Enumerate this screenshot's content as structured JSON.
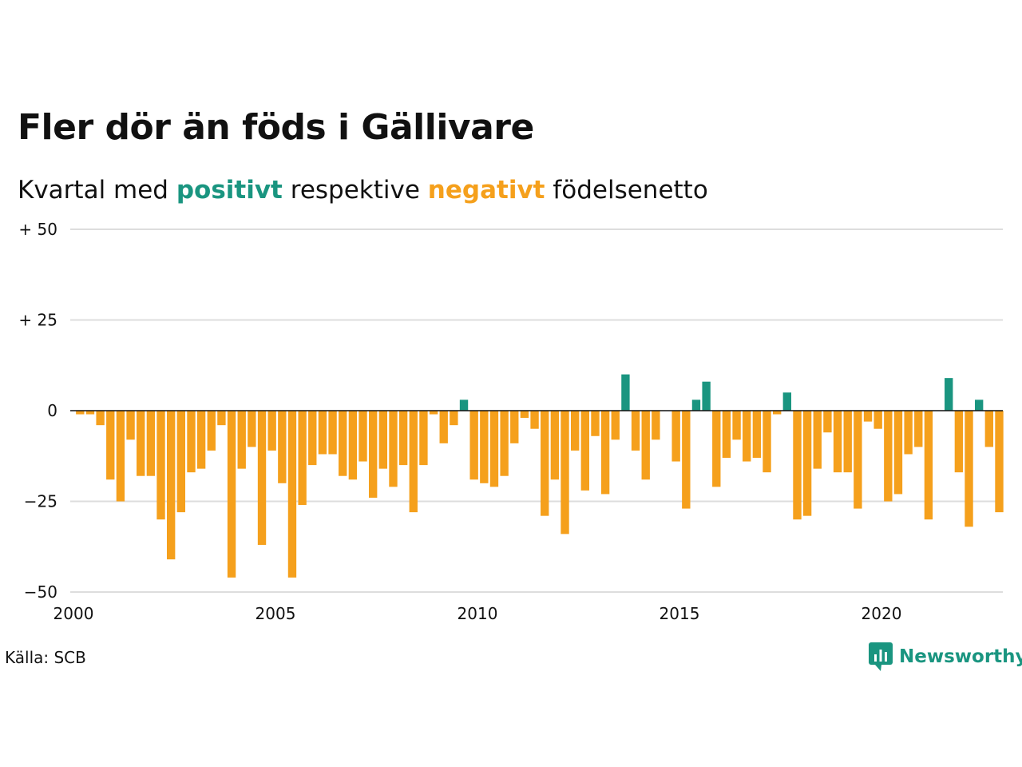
{
  "title": "Fler dör än föds i Gällivare",
  "subtitle": {
    "prefix": "Kvartal med",
    "positive": "positivt",
    "middle": "respektive",
    "negative": "negativt",
    "suffix": "födelsenetto"
  },
  "source": "Källa: SCB",
  "brand": "Newsworthy",
  "colors": {
    "positive": "#1a9580",
    "negative": "#f5a01c",
    "grid": "#dddddd",
    "zero_line": "#111111",
    "brand": "#1a9580"
  },
  "chart_data": {
    "type": "bar",
    "x_start": 2000,
    "x_step": "quarter",
    "ylim": [
      -50,
      50
    ],
    "y_ticks": [
      {
        "value": 50,
        "label": "+ 50"
      },
      {
        "value": 25,
        "label": "+ 25"
      },
      {
        "value": 0,
        "label": "0"
      },
      {
        "value": -25,
        "label": "−25"
      },
      {
        "value": -50,
        "label": "−50"
      }
    ],
    "x_ticks": [
      {
        "value": 2000,
        "label": "2000"
      },
      {
        "value": 2005,
        "label": "2005"
      },
      {
        "value": 2010,
        "label": "2010"
      },
      {
        "value": 2015,
        "label": "2015"
      },
      {
        "value": 2020,
        "label": "2020"
      }
    ],
    "grid": true,
    "values": [
      -1,
      -1,
      -4,
      -19,
      -25,
      -8,
      -18,
      -18,
      -30,
      -41,
      -28,
      -17,
      -16,
      -11,
      -4,
      -46,
      -16,
      -10,
      -37,
      -11,
      -20,
      -46,
      -26,
      -15,
      -12,
      -12,
      -18,
      -19,
      -14,
      -24,
      -16,
      -21,
      -15,
      -28,
      -15,
      -1,
      -9,
      -4,
      3,
      -19,
      -20,
      -21,
      -18,
      -9,
      -2,
      -5,
      -29,
      -19,
      -34,
      -11,
      -22,
      -7,
      -23,
      -8,
      10,
      -11,
      -19,
      -8,
      0,
      -14,
      -27,
      3,
      8,
      -21,
      -13,
      -8,
      -14,
      -13,
      -17,
      -1,
      5,
      -30,
      -29,
      -16,
      -6,
      -17,
      -17,
      -27,
      -3,
      -5,
      -25,
      -23,
      -12,
      -10,
      -30,
      0,
      9,
      -17,
      -32,
      3,
      -10,
      -28
    ]
  }
}
